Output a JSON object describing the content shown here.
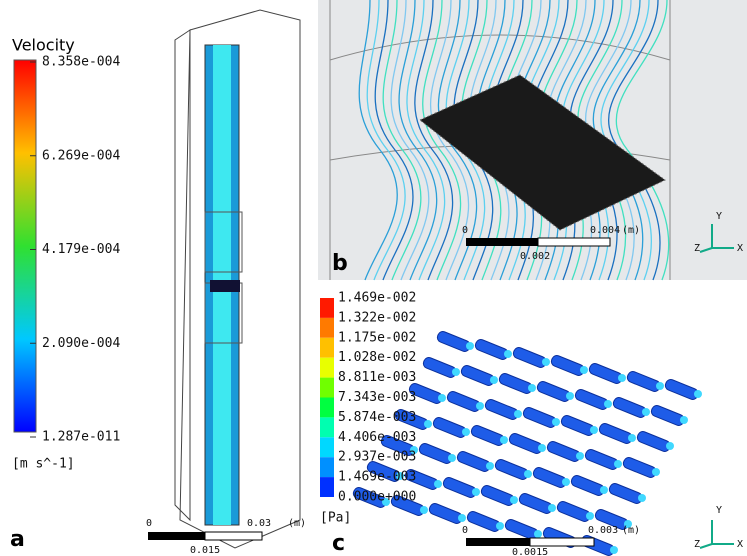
{
  "panel_a": {
    "legend_title": "Velocity",
    "legend_labels": [
      "8.358e-004",
      "6.269e-004",
      "4.179e-004",
      "2.090e-004",
      "1.287e-011"
    ],
    "unit": "[m  s^-1]",
    "scale_labels": [
      "0",
      "0.03",
      "(m)",
      "0.015"
    ],
    "label": "a"
  },
  "panel_b": {
    "scale_labels": [
      "0",
      "0.004",
      "(m)",
      "0.002"
    ],
    "label": "b",
    "axes": [
      "Y",
      "Z",
      "X"
    ]
  },
  "panel_c": {
    "legend_labels": [
      "1.469e-002",
      "1.322e-002",
      "1.175e-002",
      "1.028e-002",
      "8.811e-003",
      "7.343e-003",
      "5.874e-003",
      "4.406e-003",
      "2.937e-003",
      "1.469e-003",
      "0.000e+000"
    ],
    "unit": "[Pa]",
    "scale_labels": [
      "0",
      "0.003",
      "(m)",
      "0.0015"
    ],
    "label": "c",
    "axes": [
      "Y",
      "Z",
      "X"
    ]
  }
}
